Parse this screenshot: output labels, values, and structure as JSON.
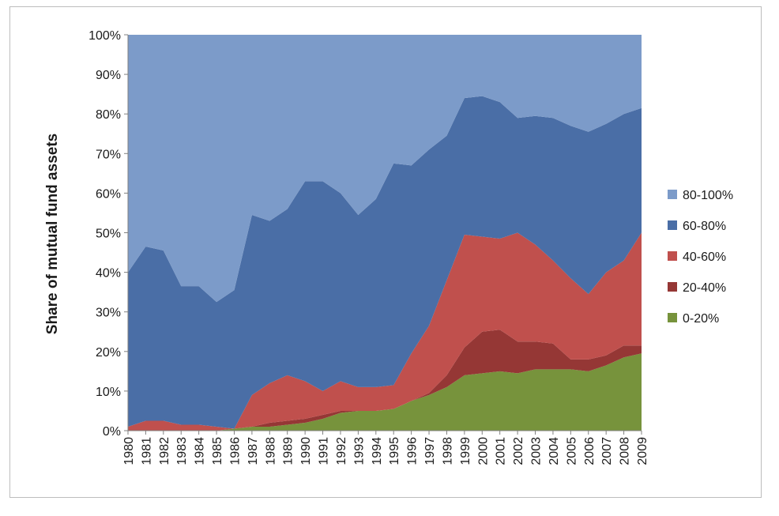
{
  "chart_data": {
    "type": "area",
    "stacked": true,
    "ylabel": "Share of mutual fund assets",
    "xlabel": "",
    "ylim": [
      0,
      100
    ],
    "y_ticks": [
      "0%",
      "10%",
      "20%",
      "30%",
      "40%",
      "50%",
      "60%",
      "70%",
      "80%",
      "90%",
      "100%"
    ],
    "x": [
      "1980",
      "1981",
      "1982",
      "1983",
      "1984",
      "1985",
      "1986",
      "1987",
      "1988",
      "1989",
      "1990",
      "1991",
      "1992",
      "1993",
      "1994",
      "1995",
      "1996",
      "1997",
      "1998",
      "1999",
      "2000",
      "2001",
      "2002",
      "2003",
      "2004",
      "2005",
      "2006",
      "2007",
      "2008",
      "2009"
    ],
    "legend_position": "right",
    "series": [
      {
        "name": "0-20%",
        "color": "#77933c",
        "values": [
          0,
          0,
          0,
          0,
          0,
          0,
          0.5,
          1,
          1,
          1.5,
          2,
          3,
          4.5,
          5,
          5,
          5.5,
          7.5,
          9,
          11,
          14,
          14.5,
          15,
          14.5,
          15.5,
          15.5,
          15.5,
          15,
          16.5,
          18.5,
          19.5
        ]
      },
      {
        "name": "20-40%",
        "color": "#953735",
        "values": [
          0,
          0,
          0,
          0,
          0,
          0,
          0,
          0,
          1,
          1,
          1,
          1,
          0.5,
          0,
          0,
          0,
          0,
          0.5,
          3,
          7,
          10.5,
          10.5,
          8,
          7,
          6.5,
          2.5,
          3,
          2.5,
          3,
          2
        ]
      },
      {
        "name": "40-60%",
        "color": "#c0504d",
        "values": [
          1,
          2.5,
          2.5,
          1.5,
          1.5,
          1,
          0,
          8,
          10,
          11.5,
          9.5,
          6,
          7.5,
          6,
          6,
          6,
          12,
          17,
          24,
          28.5,
          24,
          23,
          27.5,
          24.5,
          21,
          20.5,
          16.5,
          21,
          21.5,
          28.5
        ]
      },
      {
        "name": "60-80%",
        "color": "#4a6ea6",
        "values": [
          39,
          44,
          43,
          35,
          35,
          31.5,
          35,
          45.5,
          41,
          42,
          50.5,
          53,
          47.5,
          43.5,
          47.5,
          56,
          47.5,
          44.5,
          36.5,
          34.5,
          35.5,
          34.5,
          29,
          32.5,
          36,
          38.5,
          41,
          37.5,
          37,
          31.5
        ]
      },
      {
        "name": "80-100%",
        "color": "#7c9bc9",
        "values": [
          60,
          53.5,
          54.5,
          63.5,
          63.5,
          67.5,
          64.5,
          45.5,
          47,
          44,
          37,
          37,
          40,
          45.5,
          41.5,
          32.5,
          33,
          29,
          25.5,
          16,
          15.5,
          17,
          21,
          20.5,
          21,
          23,
          24.5,
          22.5,
          20,
          18.5
        ]
      }
    ]
  }
}
